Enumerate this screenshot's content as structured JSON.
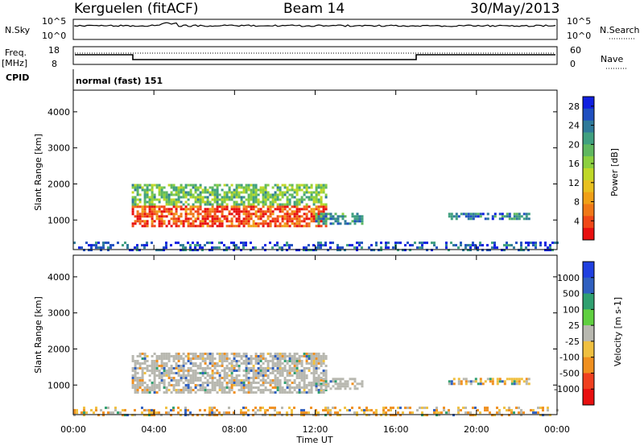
{
  "header": {
    "station": "Kerguelen (fitACF)",
    "beam": "Beam 14",
    "date": "30/May/2013"
  },
  "top_panels": {
    "nsky_label": "N.Sky",
    "nsearch_label": "N.Search",
    "nsky_tick_high": "10^5",
    "nsky_tick_low": "10^0",
    "freq_label_line1": "Freq.",
    "freq_label_line2": "[MHz]",
    "freq_tick_high": "18",
    "freq_tick_low": "8",
    "nave_label": "Nave",
    "nave_tick_high": "60",
    "nave_tick_low": "0",
    "cpid_label": "CPID",
    "cpid_value": "normal (fast) 151"
  },
  "chart_data": [
    {
      "type": "heatmap",
      "panel": "power",
      "ylabel": "Slant Range [km]",
      "xlabel": "",
      "xticks": [
        "00:00",
        "04:00",
        "08:00",
        "12:00",
        "16:00",
        "20:00",
        "00:00"
      ],
      "yticks": [
        1000,
        2000,
        3000,
        4000
      ],
      "ylim": [
        180,
        4600
      ],
      "xlim_hours": [
        0,
        24
      ],
      "colorbar": {
        "label": "Power [dB]",
        "ticks": [
          4,
          8,
          12,
          16,
          20,
          24,
          28
        ],
        "range": [
          0,
          30
        ],
        "colors": [
          "#1020e0",
          "#2050c0",
          "#2f7a9a",
          "#40a080",
          "#60b860",
          "#8cd040",
          "#c0d828",
          "#e8c020",
          "#f0a018",
          "#f07818",
          "#f04818",
          "#e81010"
        ]
      },
      "features": [
        {
          "start_hour": 2.9,
          "end_hour": 12.6,
          "range_km": [
            800,
            1400
          ],
          "dB": 26
        },
        {
          "start_hour": 2.9,
          "end_hour": 12.6,
          "range_km": [
            1400,
            2000
          ],
          "dB": 12
        },
        {
          "start_hour": 12.0,
          "end_hour": 14.3,
          "range_km": [
            900,
            1200
          ],
          "dB": 8
        },
        {
          "start_hour": 18.6,
          "end_hour": 22.6,
          "range_km": [
            1000,
            1200
          ],
          "dB": 6
        },
        {
          "start_hour": 0.0,
          "end_hour": 24.0,
          "range_km": [
            180,
            400
          ],
          "dB": 4
        }
      ]
    },
    {
      "type": "heatmap",
      "panel": "velocity",
      "ylabel": "Slant Range [km]",
      "xlabel": "Time UT",
      "xticks": [
        "00:00",
        "04:00",
        "08:00",
        "12:00",
        "16:00",
        "20:00",
        "00:00"
      ],
      "yticks": [
        1000,
        2000,
        3000,
        4000
      ],
      "ylim": [
        180,
        4600
      ],
      "xlim_hours": [
        0,
        24
      ],
      "colorbar": {
        "label": "Velocity [m s-1]",
        "ticks": [
          1000,
          500,
          100,
          25,
          -25,
          -100,
          -500,
          -1000
        ],
        "colors": [
          "#2040e0",
          "#3060c0",
          "#30a070",
          "#60d040",
          "#b8b8b0",
          "#f0c040",
          "#f09020",
          "#f04020",
          "#e81010"
        ]
      },
      "features": [
        {
          "start_hour": 2.9,
          "end_hour": 12.6,
          "range_km": [
            800,
            1900
          ],
          "velocity_ms": 0
        },
        {
          "start_hour": 12.0,
          "end_hour": 14.3,
          "range_km": [
            900,
            1200
          ],
          "velocity_ms": 0
        },
        {
          "start_hour": 18.6,
          "end_hour": 22.6,
          "range_km": [
            1000,
            1200
          ],
          "velocity_ms": -50
        },
        {
          "start_hour": 0.0,
          "end_hour": 24.0,
          "range_km": [
            180,
            400
          ],
          "velocity_ms": -80
        }
      ]
    }
  ],
  "style": {
    "ground_scatter": "#b8b8b0",
    "axis": "#000000"
  }
}
